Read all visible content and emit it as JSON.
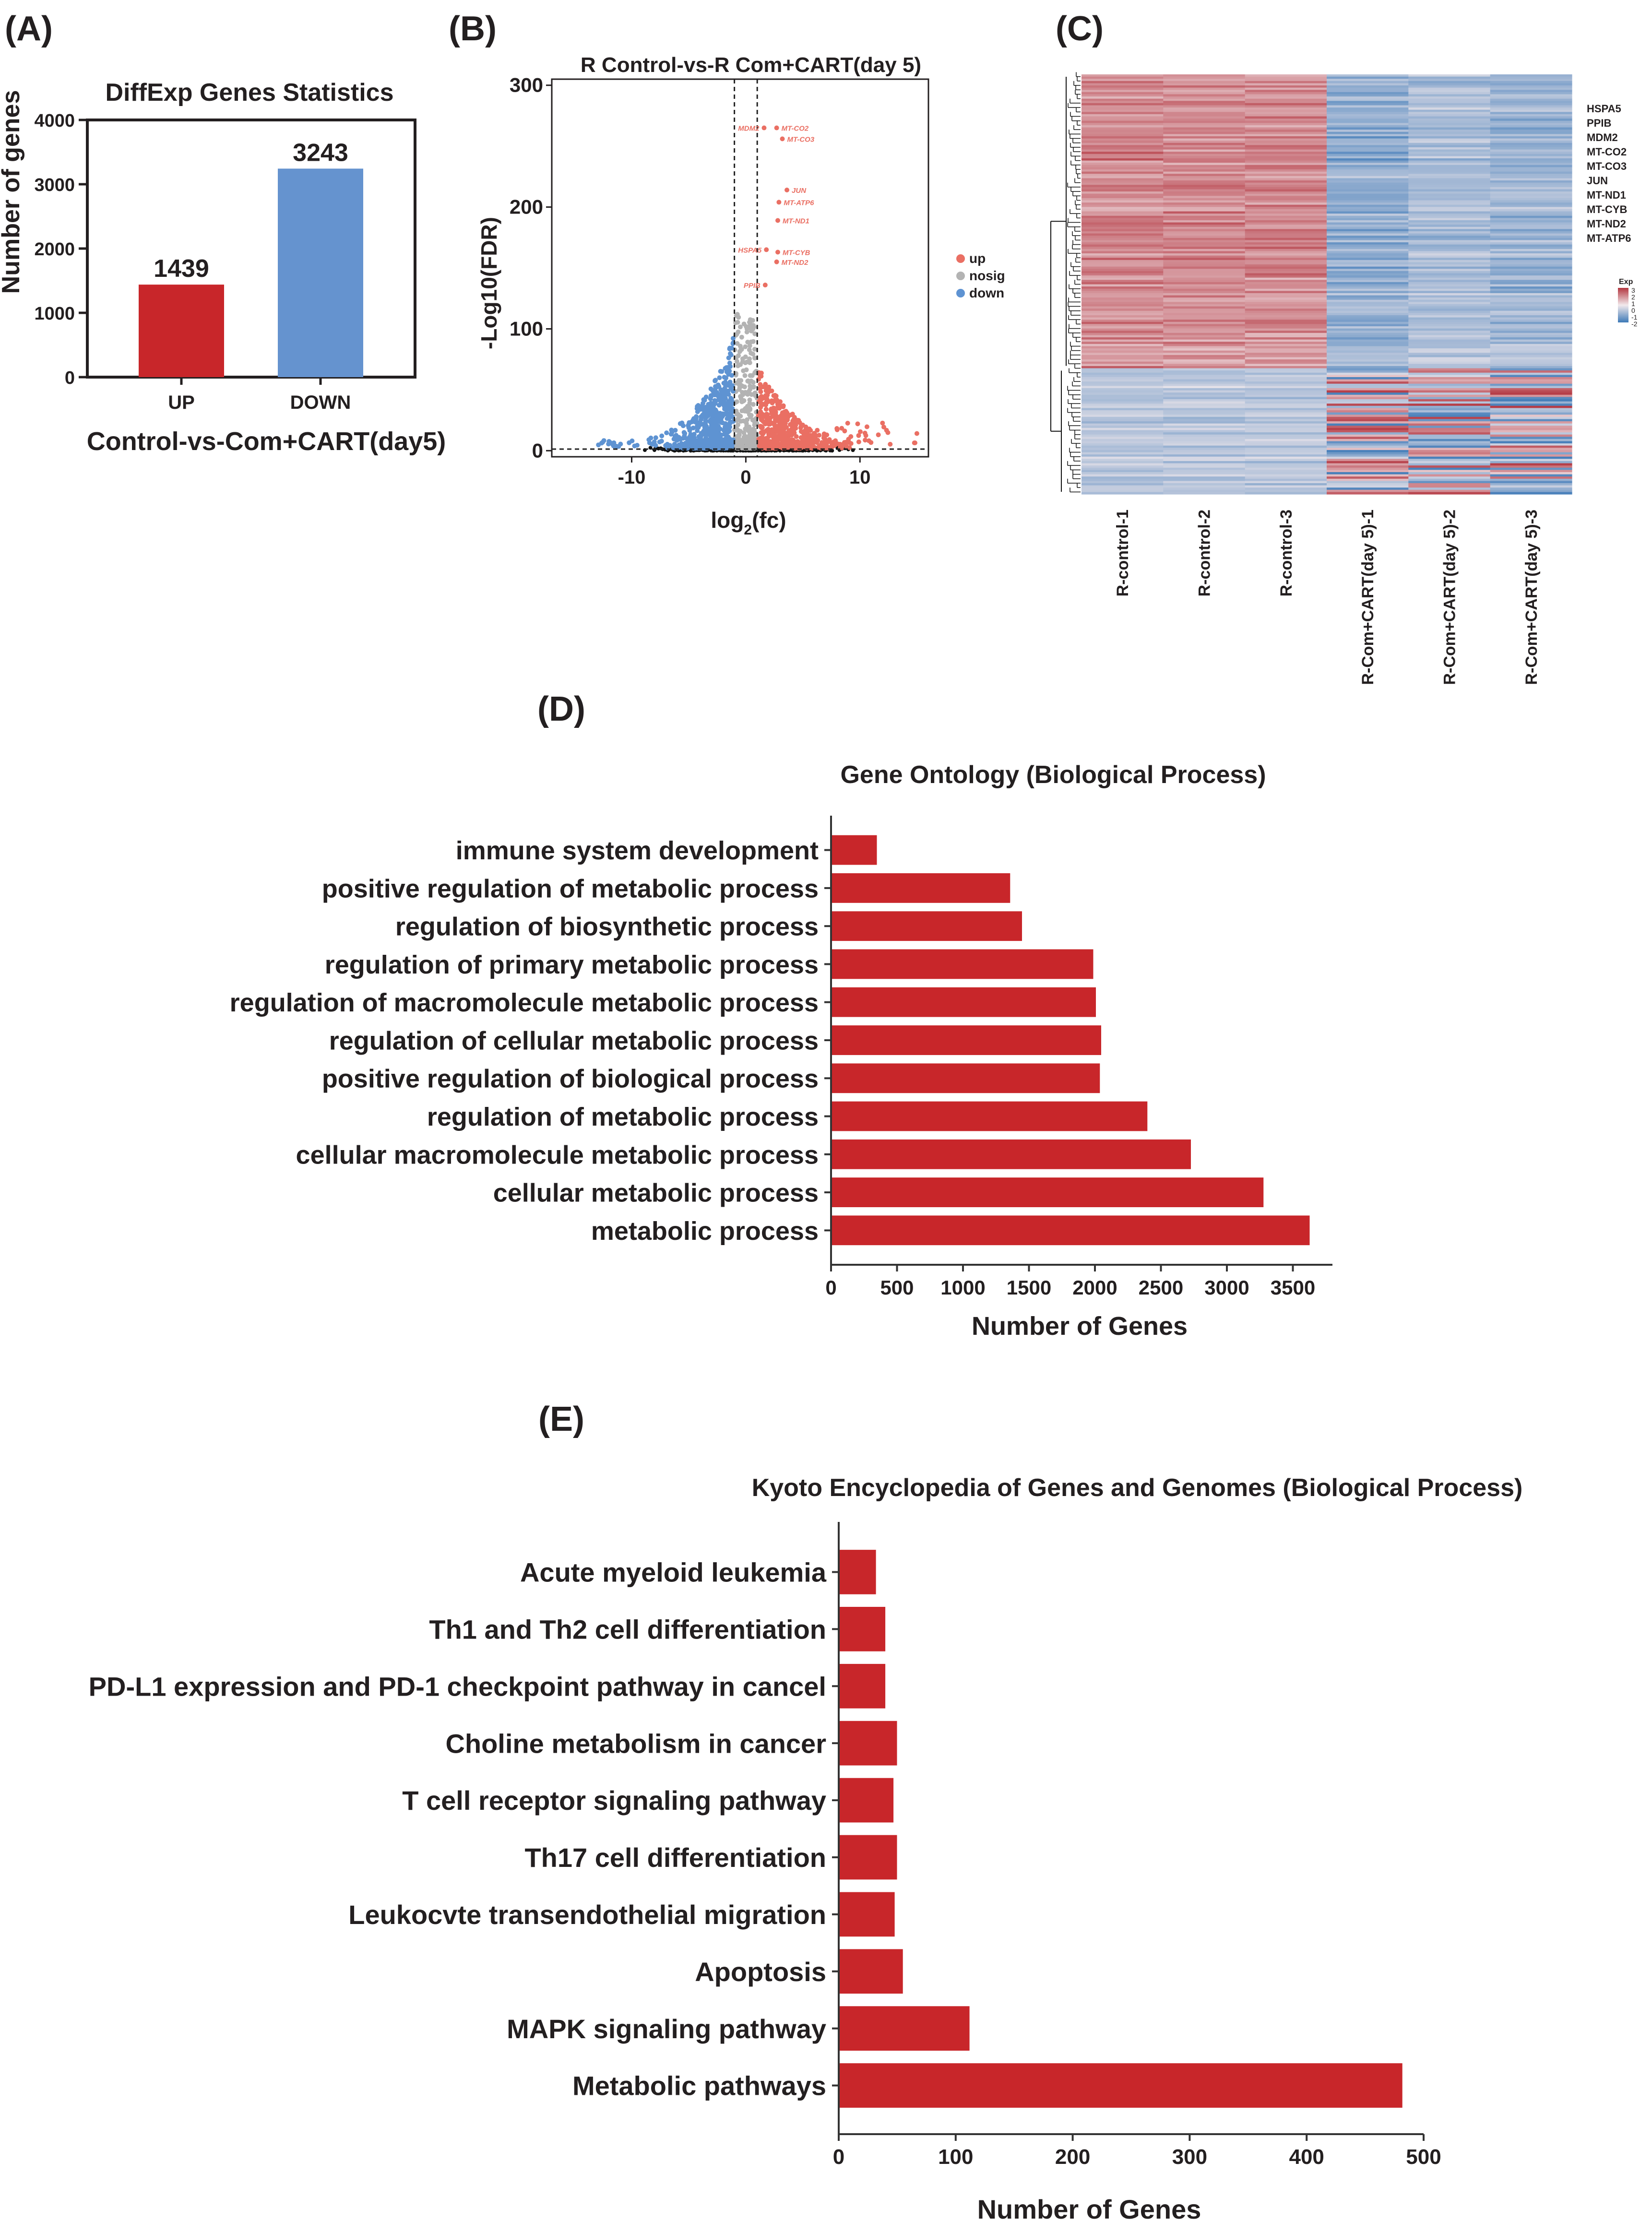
{
  "colors": {
    "red": "#c8262a",
    "blue": "#6593cf",
    "volc_up": "#ea6f63",
    "volc_nosig": "#b3b3b3",
    "volc_down": "#5e93d2",
    "heat_high": "#b3353f",
    "heat_mid": "#f2e9ec",
    "heat_low": "#3d79b7",
    "text": "#231f20"
  },
  "panels": {
    "A": "(A)",
    "B": "(B)",
    "C": "(C)",
    "D": "(D)",
    "E": "(E)"
  },
  "chart_data": [
    {
      "id": "A",
      "type": "bar",
      "title": "DiffExp Genes Statistics",
      "xlabel": "Control-vs-Com+CART(day5)",
      "ylabel": "Number of genes",
      "categories": [
        "UP",
        "DOWN"
      ],
      "values": [
        1439,
        3243
      ],
      "bar_colors": [
        "#c8262a",
        "#6593cf"
      ],
      "ylim": [
        0,
        4000
      ],
      "yticks": [
        0,
        1000,
        2000,
        3000,
        4000
      ]
    },
    {
      "id": "B",
      "type": "scatter",
      "title": "R Control-vs-R Com+CART(day 5)",
      "xlabel": "log",
      "xlabel_sub": "2",
      "xlabel_tail": "(fc)",
      "ylabel": "-Log10(FDR)",
      "xlim": [
        -17,
        16
      ],
      "ylim": [
        -5,
        305
      ],
      "xticks": [
        -10,
        0,
        10
      ],
      "yticks": [
        0,
        100,
        200,
        300
      ],
      "thresholds": {
        "log2fc": [
          -1,
          1
        ],
        "neglog10fdr": 1.3
      },
      "legend": [
        {
          "label": "up",
          "color": "#ea6f63"
        },
        {
          "label": "nosig",
          "color": "#b3b3b3"
        },
        {
          "label": "down",
          "color": "#5e93d2"
        }
      ],
      "labeled_points": [
        {
          "gene": "MDM2",
          "x": 1.6,
          "y": 265
        },
        {
          "gene": "MT-CO2",
          "x": 2.7,
          "y": 265
        },
        {
          "gene": "MT-CO3",
          "x": 3.2,
          "y": 256
        },
        {
          "gene": "JUN",
          "x": 3.6,
          "y": 214
        },
        {
          "gene": "MT-ATP6",
          "x": 2.9,
          "y": 204
        },
        {
          "gene": "MT-ND1",
          "x": 2.8,
          "y": 189
        },
        {
          "gene": "HSPA5",
          "x": 1.8,
          "y": 165
        },
        {
          "gene": "MT-CYB",
          "x": 2.8,
          "y": 163
        },
        {
          "gene": "MT-ND2",
          "x": 2.7,
          "y": 155
        },
        {
          "gene": "PPIB",
          "x": 1.7,
          "y": 136
        }
      ]
    },
    {
      "id": "C",
      "type": "heatmap",
      "samples": [
        "R-control-1",
        "R-control-2",
        "R-control-3",
        "R-Com+CART(day 5)-1",
        "R-Com+CART(day 5)-2",
        "R-Com+CART(day 5)-3"
      ],
      "gene_labels": [
        "HSPA5",
        "PPIB",
        "MDM2",
        "MT-CO2",
        "MT-CO3",
        "JUN",
        "MT-ND1",
        "MT-CYB",
        "MT-ND2",
        "MT-ATP6"
      ],
      "legend_title": "Exp",
      "legend_ticks": [
        "3",
        "2",
        "1",
        "0",
        "-1",
        "-2"
      ],
      "clusters": [
        {
          "name": "up in control",
          "fraction": 0.7,
          "pattern": [
            1.6,
            1.6,
            1.6,
            -1.6,
            -1.2,
            -1.4
          ]
        },
        {
          "name": "up in treatment",
          "fraction": 0.3,
          "pattern": [
            -0.9,
            -0.9,
            -0.9,
            0.8,
            1.2,
            0.7
          ]
        }
      ]
    },
    {
      "id": "D",
      "type": "bar",
      "orientation": "horizontal",
      "title": "Gene Ontology (Biological Process)",
      "xlabel": "Number of  Genes",
      "categories": [
        "immune system development",
        "positive regulation of metabolic process",
        "regulation of biosynthetic process",
        "regulation of primary metabolic process",
        "regulation of macromolecule metabolic process",
        "regulation of cellular metabolic process",
        "positive regulation of biological process",
        "regulation of metabolic process",
        "cellular macromolecule metabolic process",
        "cellular metabolic process",
        "metabolic process"
      ],
      "values": [
        340,
        1350,
        1440,
        1980,
        2000,
        2040,
        2030,
        2390,
        2720,
        3270,
        3620
      ],
      "xlim": [
        0,
        3800
      ],
      "xticks": [
        0,
        500,
        1000,
        1500,
        2000,
        2500,
        3000,
        3500
      ]
    },
    {
      "id": "E",
      "type": "bar",
      "orientation": "horizontal",
      "title": "Kyoto Encyclopedia of Genes and Genomes (Biological Process)",
      "xlabel": "Number of  Genes",
      "categories": [
        "Acute myeloid leukemia",
        "Th1 and Th2 cell differentiation",
        "PD-L1 expression and PD-1 checkpoint pathway in cancel",
        "Choline metabolism in cancer",
        "T cell receptor signaling pathway",
        "Th17 cell differentiation",
        "Leukocvte transendothelial migration",
        "Apoptosis",
        "MAPK signaling pathway",
        "Metabolic pathways"
      ],
      "values": [
        31,
        39,
        39,
        49,
        46,
        49,
        47,
        54,
        111,
        481
      ],
      "xlim": [
        0,
        500
      ],
      "xticks": [
        0,
        100,
        200,
        300,
        400,
        500
      ]
    }
  ]
}
